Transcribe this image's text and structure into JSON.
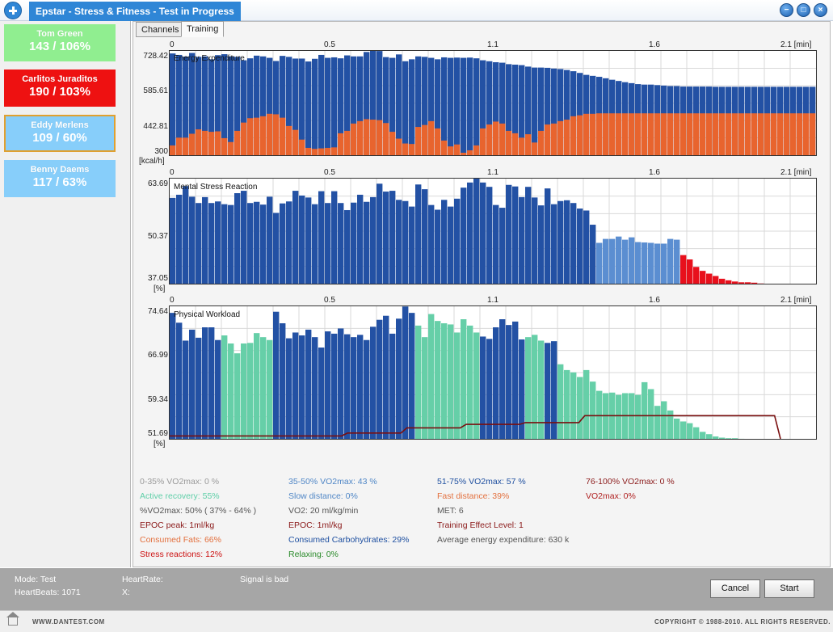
{
  "window": {
    "title": "Epstar - Stress & Fitness - Test in Progress",
    "controls": {
      "minimize": "−",
      "maximize": "□",
      "close": "×"
    }
  },
  "athletes": [
    {
      "name": "Tom Green",
      "value": "143 / 106%",
      "bg": "#90ee90",
      "fg": "#ffffff",
      "selected": false
    },
    {
      "name": "Carlitos Juraditos",
      "value": "190 / 103%",
      "bg": "#ee1111",
      "fg": "#ffffff",
      "selected": false
    },
    {
      "name": "Eddy Merlens",
      "value": "109 / 60%",
      "bg": "#87cefa",
      "fg": "#ffffff",
      "selected": true
    },
    {
      "name": "Benny Daems",
      "value": "117 / 63%",
      "bg": "#87cefa",
      "fg": "#ffffff",
      "selected": false
    }
  ],
  "tabs": {
    "channels": "Channels",
    "training": "Training"
  },
  "colors": {
    "blue": "#2351a4",
    "orange": "#e8642e",
    "lightblue": "#5b8ed1",
    "red": "#e8101c",
    "teal": "#66cfa8",
    "darkred": "#7a0f0f",
    "grid": "#d9d9d9"
  },
  "x_axis": {
    "ticks": [
      "0",
      "0.5",
      "1.1",
      "1.6",
      "2.1 [min]"
    ]
  },
  "chart_data": [
    {
      "type": "bar",
      "title": "Energy Expenditure",
      "ylabel": "[kcal/h]",
      "yticks": [
        "728.42",
        "585.61",
        "442.81",
        "300"
      ],
      "ylim": [
        300,
        728.42
      ],
      "xlim": [
        0,
        2.1
      ],
      "series": [
        {
          "values": [
            718,
            712,
            705,
            720,
            704,
            706,
            694,
            711,
            715,
            706,
            704,
            690,
            698,
            709,
            706,
            700,
            687,
            708,
            704,
            697,
            697,
            685,
            696,
            712,
            700,
            702,
            698,
            710,
            706,
            706,
            724,
            734,
            728,
            703,
            700,
            714,
            686,
            694,
            706,
            704,
            700,
            694,
            702,
            700,
            701,
            700,
            701,
            698,
            690,
            686,
            682,
            680,
            674,
            672,
            670,
            664,
            660,
            660,
            659,
            656,
            654,
            650,
            645,
            638,
            630,
            626,
            622,
            616,
            610,
            605,
            600,
            596,
            592,
            590,
            590,
            588,
            586,
            584,
            584,
            582,
            582,
            582,
            582,
            582,
            581,
            581,
            581,
            581,
            581,
            581,
            581,
            581,
            581,
            581,
            581,
            581,
            581,
            581,
            581,
            581
          ]
        },
        {
          "values": [
            340,
            372,
            372,
            388,
            406,
            400,
            396,
            398,
            370,
            354,
            400,
            434,
            452,
            454,
            460,
            470,
            468,
            454,
            420,
            404,
            364,
            330,
            326,
            328,
            330,
            332,
            390,
            400,
            430,
            440,
            448,
            446,
            444,
            432,
            396,
            368,
            348,
            346,
            416,
            424,
            440,
            410,
            360,
            336,
            344,
            310,
            320,
            340,
            410,
            426,
            438,
            430,
            400,
            390,
            372,
            386,
            352,
            400,
            426,
            430,
            440,
            446,
            460,
            464,
            470,
            470,
            472,
            472,
            472,
            472,
            472,
            472,
            472,
            472,
            472,
            472,
            472,
            472,
            472,
            472,
            472,
            472,
            472,
            472,
            472,
            472,
            472,
            472,
            472,
            472,
            472,
            472,
            472,
            472,
            472,
            472,
            472,
            472,
            472,
            472
          ]
        }
      ]
    },
    {
      "type": "bar",
      "title": "Mental Stress Reaction",
      "ylabel": "[%]",
      "yticks": [
        "63.69",
        "50.37",
        "37.05"
      ],
      "ylim": [
        37.05,
        63.69
      ],
      "xlim": [
        0,
        2.1
      ],
      "values": [
        58.8,
        59.6,
        61.8,
        59.1,
        57.5,
        59.0,
        57.5,
        57.9,
        57.2,
        57.0,
        60.0,
        60.6,
        57.5,
        57.8,
        57.1,
        59.1,
        55.0,
        57.4,
        57.9,
        60.6,
        59.4,
        58.9,
        57.2,
        60.5,
        57.5,
        60.5,
        57.5,
        55.7,
        57.6,
        59.6,
        57.8,
        59.0,
        62.4,
        60.4,
        60.6,
        58.3,
        58.0,
        56.6,
        62.2,
        61.0,
        57.0,
        55.8,
        58.3,
        56.6,
        58.6,
        61.4,
        62.7,
        63.7,
        62.7,
        61.6,
        57.0,
        56.3,
        62.1,
        61.7,
        59.0,
        61.6,
        58.9,
        56.9,
        61.2,
        57.2,
        58.0,
        58.2,
        57.5,
        56.1,
        55.6,
        52.0,
        47.4,
        48.4,
        48.4,
        49.0,
        48.2,
        48.8,
        47.6,
        47.5,
        47.4,
        47.2,
        47.2,
        48.4,
        48.2,
        44.3,
        43.2,
        41.3,
        40.3,
        39.6,
        39.0,
        38.3,
        37.9,
        37.6,
        37.4,
        37.4,
        37.3,
        37.1,
        37.05,
        37.05,
        37.05,
        37.05,
        37.05,
        37.05,
        37.05,
        37.05
      ]
    },
    {
      "type": "bar",
      "title": "Physical Workload",
      "ylabel": "[%]",
      "yticks": [
        "74.64",
        "66.99",
        "59.34",
        "51.69"
      ],
      "ylim": [
        51.69,
        74.64
      ],
      "xlim": [
        0,
        2.1
      ],
      "values": [
        73.5,
        71.8,
        68.7,
        70.6,
        69.2,
        71.0,
        71.0,
        68.8,
        69.6,
        68.2,
        66.5,
        68.2,
        68.3,
        70.0,
        69.3,
        68.8,
        73.7,
        71.7,
        69.1,
        70.1,
        69.6,
        70.6,
        69.3,
        67.5,
        70.3,
        69.9,
        70.8,
        69.8,
        69.3,
        69.7,
        68.8,
        71.1,
        72.3,
        73.0,
        69.9,
        72.5,
        74.6,
        73.5,
        71.3,
        69.3,
        73.3,
        72.1,
        71.7,
        71.5,
        70.1,
        72.4,
        71.3,
        70.1,
        69.4,
        69.0,
        71.0,
        72.4,
        71.4,
        72.0,
        68.9,
        69.3,
        69.7,
        68.7,
        68.3,
        68.6,
        64.6,
        63.6,
        63.2,
        62.4,
        63.6,
        61.6,
        60.0,
        59.6,
        59.7,
        59.3,
        59.6,
        59.6,
        59.3,
        61.5,
        60.3,
        57.4,
        58.2,
        56.6,
        55.2,
        54.7,
        54.4,
        53.7,
        52.9,
        52.5,
        52.1,
        51.9,
        51.8,
        51.8,
        51.7,
        51.69,
        51.69,
        51.69,
        51.69,
        51.69,
        51.69,
        51.69,
        51.69,
        51.69,
        51.69,
        51.69
      ],
      "line": [
        52.2,
        52.2,
        52.2,
        52.2,
        52.2,
        52.2,
        52.2,
        52.2,
        52.2,
        52.2,
        52.2,
        52.2,
        52.2,
        52.2,
        52.2,
        52.2,
        52.2,
        52.2,
        52.2,
        52.2,
        52.2,
        52.2,
        52.2,
        52.2,
        52.2,
        52.2,
        52.2,
        52.2,
        52.2,
        52.2,
        52.7,
        52.7,
        52.7,
        52.7,
        52.7,
        52.7,
        52.7,
        52.7,
        52.7,
        52.7,
        53.6,
        53.6,
        53.6,
        53.6,
        53.6,
        53.6,
        53.6,
        53.6,
        53.6,
        53.6,
        54.2,
        54.2,
        54.2,
        54.2,
        54.2,
        54.2,
        54.2,
        54.2,
        54.2,
        54.2,
        54.5,
        54.5,
        54.5,
        54.5,
        54.5,
        54.5,
        54.5,
        54.5,
        54.5,
        54.5,
        55.7,
        55.7,
        55.7,
        55.7,
        55.7,
        55.7,
        55.7,
        55.7,
        55.7,
        55.7,
        55.7,
        55.7,
        55.7,
        55.7,
        55.7,
        55.7,
        55.7,
        55.7,
        55.7,
        55.7,
        55.7,
        55.7,
        55.7,
        55.7,
        55.7,
        55.7,
        55.7,
        55.7,
        55.7,
        55.7,
        55.7,
        55.7,
        55.7,
        51.69
      ]
    }
  ],
  "stats": [
    {
      "text": "0-35% VO2max: 0 %",
      "color": "#9a9a9a"
    },
    {
      "text": "35-50% VO2max: 43 %",
      "color": "#4f86c6"
    },
    {
      "text": "51-75% VO2max: 57 %",
      "color": "#1e4fa0"
    },
    {
      "text": "76-100% VO2max: 0 %",
      "color": "#8b1a1a"
    },
    {
      "text": "Active recovery: 55%",
      "color": "#5fcfa8"
    },
    {
      "text": "Slow distance: 0%",
      "color": "#4f86c6"
    },
    {
      "text": "Fast distance: 39%",
      "color": "#e3703e"
    },
    {
      "text": "VO2max: 0%",
      "color": "#b02020"
    },
    {
      "text": "%VO2max: 50% ( 37% - 64% )",
      "color": "#555555"
    },
    {
      "text": "VO2: 20 ml/kg/min",
      "color": "#555555"
    },
    {
      "text": "MET: 6",
      "color": "#555555"
    },
    {
      "text": "EPOC peak: 1ml/kg",
      "color": "#8b1a1a"
    },
    {
      "text": "EPOC: 1ml/kg",
      "color": "#8b1a1a"
    },
    {
      "text": "Training Effect Level: 1",
      "color": "#8b1a1a"
    },
    {
      "text": "Consumed Fats: 66%",
      "color": "#e3703e"
    },
    {
      "text": "Consumed Carbohydrates: 29%",
      "color": "#1e4fa0"
    },
    {
      "text": "Average energy expenditure: 630 k",
      "color": "#555555"
    },
    {
      "text": "Stress reactions: 12%",
      "color": "#cc1111"
    },
    {
      "text": "Relaxing: 0%",
      "color": "#2a8a2a"
    }
  ],
  "status": {
    "mode": "Mode: Test",
    "heartbeats": "HeartBeats: 1071",
    "heartrate": "HeartRate:",
    "x": "X:",
    "signal": "Signal is bad",
    "cancel": "Cancel",
    "start": "Start"
  },
  "footer": {
    "left": "WWW.DANTEST.COM",
    "right": "COPYRIGHT © 1988-2010. ALL RIGHTS RESERVED."
  }
}
